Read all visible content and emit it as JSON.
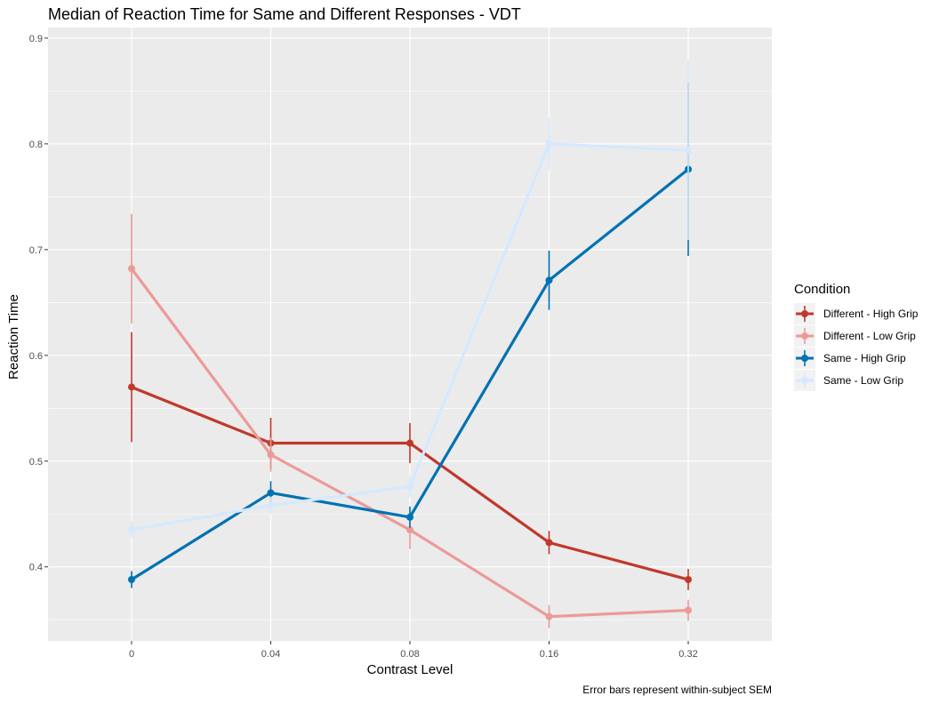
{
  "chart_data": {
    "type": "line",
    "title": "Median of Reaction Time for Same and Different Responses - VDT",
    "xlabel": "Contrast Level",
    "ylabel": "Reaction Time",
    "caption": "Error bars represent within-subject SEM",
    "categories": [
      "0",
      "0.04",
      "0.08",
      "0.16",
      "0.32"
    ],
    "ylim": [
      0.33,
      0.91
    ],
    "yticks": [
      "0.4",
      "0.5",
      "0.6",
      "0.7",
      "0.8",
      "0.9"
    ],
    "grid": true,
    "legend": {
      "title": "Condition",
      "position": "right"
    },
    "series": [
      {
        "name": "Different - High Grip",
        "color": "#c0392b",
        "values": [
          0.57,
          0.517,
          0.517,
          0.423,
          0.388
        ],
        "err": [
          0.052,
          0.024,
          0.019,
          0.011,
          0.01
        ]
      },
      {
        "name": "Different - Low Grip",
        "color": "#ec9a98",
        "values": [
          0.682,
          0.506,
          0.435,
          0.353,
          0.359
        ],
        "err": [
          0.052,
          0.016,
          0.018,
          0.011,
          0.01
        ]
      },
      {
        "name": "Same - High Grip",
        "color": "#0072b2",
        "values": [
          0.388,
          0.47,
          0.447,
          0.671,
          0.776
        ],
        "err": [
          0.008,
          0.011,
          0.01,
          0.028,
          0.082
        ]
      },
      {
        "name": "Same - Low Grip",
        "color": "#d4e9ff",
        "values": [
          0.435,
          0.458,
          0.476,
          0.8,
          0.794
        ],
        "err": [
          0.008,
          0.008,
          0.01,
          0.024,
          0.085
        ]
      }
    ]
  }
}
